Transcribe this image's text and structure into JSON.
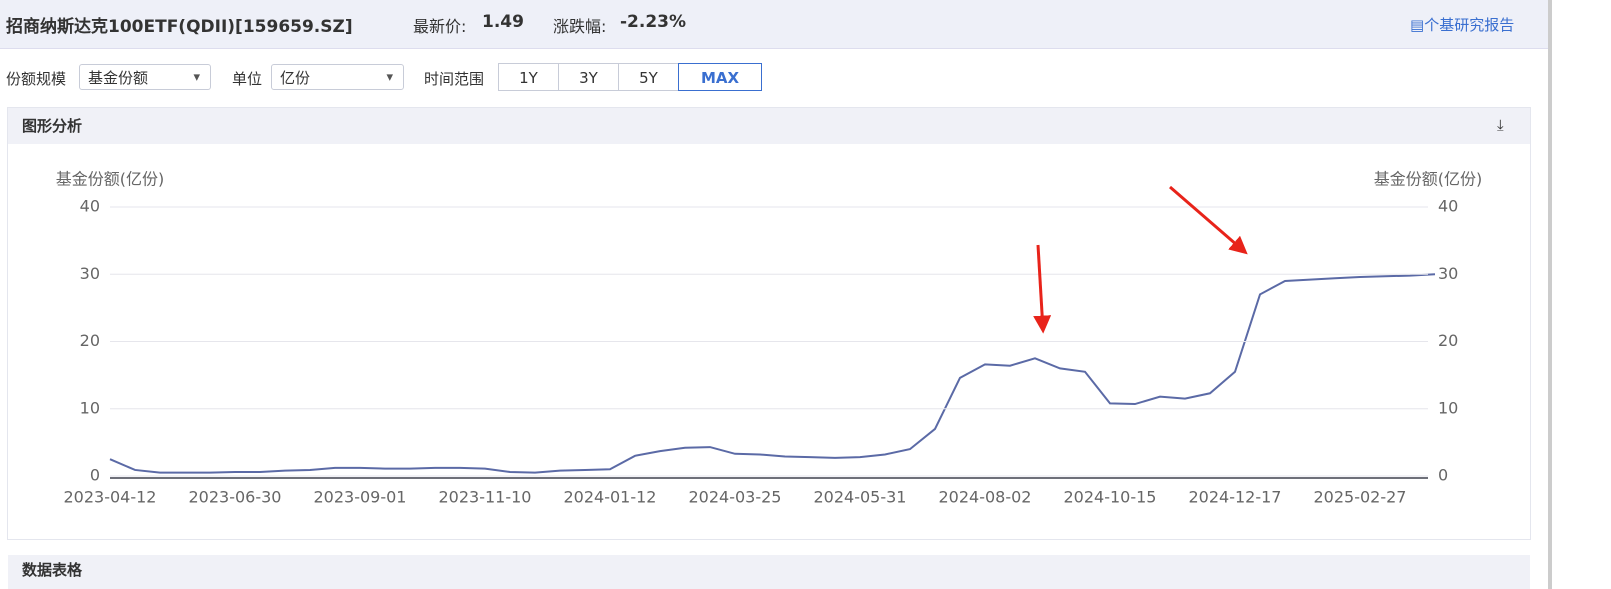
{
  "header": {
    "title": "招商纳斯达克100ETF(QDII)[159659.SZ]",
    "price_label": "最新价:",
    "price": "1.49",
    "change_label": "涨跌幅:",
    "change": "-2.23%",
    "report_link": "个基研究报告"
  },
  "toolbar": {
    "scale_label": "份额规模",
    "scale_select": "基金份额",
    "unit_label": "单位",
    "unit_select": "亿份",
    "range_label": "时间范围",
    "ranges": [
      "1Y",
      "3Y",
      "5Y",
      "MAX"
    ]
  },
  "panel_title": "图形分析",
  "table_title": "数据表格",
  "chart_data": {
    "type": "line",
    "y_label": "基金份额(亿份)",
    "y2_label": "基金份额(亿份)",
    "categories": [
      "2023-04-12",
      null,
      null,
      null,
      null,
      "2023-06-30",
      null,
      null,
      null,
      null,
      "2023-09-01",
      null,
      null,
      null,
      null,
      "2023-11-10",
      null,
      null,
      null,
      null,
      "2024-01-12",
      null,
      null,
      null,
      null,
      "2024-03-25",
      null,
      null,
      null,
      null,
      "2024-05-31",
      null,
      null,
      null,
      null,
      "2024-08-02",
      null,
      null,
      null,
      null,
      "2024-10-15",
      null,
      null,
      null,
      null,
      "2024-12-17",
      null,
      null,
      null,
      null,
      "2025-02-27",
      null,
      null,
      null
    ],
    "series": [
      {
        "color": "#5b6aa6",
        "values": [
          2.5,
          0.9,
          0.5,
          0.5,
          0.5,
          0.6,
          0.6,
          0.8,
          0.9,
          1.2,
          1.2,
          1.1,
          1.1,
          1.2,
          1.2,
          1.1,
          0.6,
          0.5,
          0.8,
          0.9,
          1.0,
          3.0,
          3.7,
          4.2,
          4.3,
          3.3,
          3.2,
          2.9,
          2.8,
          2.7,
          2.8,
          3.2,
          4.0,
          7.0,
          14.6,
          16.6,
          16.4,
          17.5,
          16.0,
          15.5,
          10.8,
          10.7,
          11.8,
          11.5,
          12.3,
          15.5,
          27.0,
          29.0,
          29.2,
          29.4,
          29.6,
          29.7,
          29.8,
          30.0
        ]
      }
    ],
    "ylim": [
      0,
      40
    ],
    "yticks": [
      0,
      10,
      20,
      30,
      40
    ],
    "y2lim": [
      0,
      40
    ],
    "y2ticks": [
      0,
      10,
      20,
      30,
      40
    ],
    "grid": true
  }
}
